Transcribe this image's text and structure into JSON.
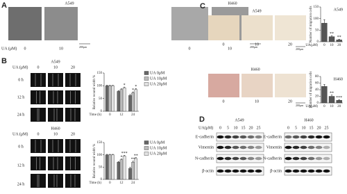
{
  "panel_a": {
    "label": "A",
    "x_label": "UA (μM)",
    "a549": {
      "title": "A549",
      "doses": [
        "0",
        "10"
      ],
      "scale": "200μm"
    },
    "h460": {
      "title": "H460",
      "doses": [
        "0",
        "10"
      ],
      "scale": "200μm"
    }
  },
  "panel_b": {
    "label": "B",
    "a549": {
      "title": "A549",
      "header": "UA (μM)",
      "doses": [
        "0",
        "10",
        "20"
      ],
      "times": [
        "0 h",
        "12 h",
        "24 h"
      ]
    },
    "h460": {
      "title": "H460",
      "header": "UA (μM)",
      "doses": [
        "0",
        "10",
        "20"
      ],
      "times": [
        "0 h",
        "12 h",
        "24 h"
      ]
    }
  },
  "panel_c": {
    "label": "C",
    "a549": {
      "title": "A549",
      "doses": [
        "0",
        "10",
        "20"
      ],
      "scale": "200μm"
    },
    "h460": {
      "title": "H460",
      "doses": [
        "0",
        "10",
        "20"
      ],
      "scale": "200μm"
    }
  },
  "panel_d": {
    "label": "D",
    "x_label": "UA(μM)",
    "a549": {
      "title": "A549",
      "doses": [
        "0",
        "5",
        "10",
        "15",
        "20",
        "25"
      ],
      "proteins": [
        "E-cadherin",
        "Vimentin",
        "N-cadherin",
        "β-actin"
      ]
    },
    "h460": {
      "title": "H460",
      "doses": [
        "0",
        "5",
        "10",
        "15",
        "20",
        "25"
      ],
      "proteins": [
        "E-cadherin",
        "Vimentin",
        "N-cadherin",
        "β-actin"
      ]
    }
  },
  "chart_data": [
    {
      "type": "bar",
      "title": "A549",
      "x_label": "UA(μM)",
      "y_label": "Number of migration cells",
      "categories": [
        "0",
        "10",
        "20"
      ],
      "values": [
        80,
        22,
        8
      ],
      "errors": [
        15,
        4,
        3
      ],
      "significance": [
        null,
        "**",
        "**"
      ],
      "color": "#555555",
      "ylim": [
        0,
        150
      ],
      "yticks": [
        0,
        50,
        100,
        150
      ]
    },
    {
      "type": "bar",
      "title": "H460",
      "x_label": "UA(μM)",
      "y_label": "Number of migration cells",
      "categories": [
        "0",
        "10",
        "20"
      ],
      "values": [
        50,
        20,
        8
      ],
      "errors": [
        6,
        4,
        2
      ],
      "significance": [
        null,
        "**",
        "***"
      ],
      "color": "#555555",
      "ylim": [
        0,
        80
      ],
      "yticks": [
        0,
        20,
        40,
        60,
        80
      ]
    },
    {
      "type": "bar",
      "x_label": "Time (h)",
      "y_label": "Relative wound width %",
      "categories": [
        "0",
        "12",
        "24"
      ],
      "legend": "right",
      "series": [
        {
          "name": "UA 0μM",
          "color": "#666666",
          "values": [
            100,
            78,
            62
          ],
          "errors": [
            2,
            3,
            4
          ],
          "significance": [
            null,
            null,
            null
          ]
        },
        {
          "name": "UA 10μM",
          "color": "#bbbbbb",
          "values": [
            100,
            85,
            72
          ],
          "errors": [
            2,
            3,
            4
          ],
          "significance": [
            null,
            null,
            "*"
          ]
        },
        {
          "name": "UA 20μM",
          "color": "#e2e2e2",
          "values": [
            100,
            92,
            85
          ],
          "errors": [
            2,
            3,
            4
          ],
          "significance": [
            null,
            "*",
            "*"
          ]
        }
      ],
      "ylim": [
        0,
        150
      ],
      "yticks": [
        0,
        50,
        100,
        150
      ]
    },
    {
      "type": "bar",
      "x_label": "Time (h)",
      "y_label": "Relative wound width %",
      "categories": [
        "0",
        "12",
        "24"
      ],
      "legend": "right",
      "series": [
        {
          "name": "UA 0μM",
          "color": "#666666",
          "values": [
            100,
            70,
            45
          ],
          "errors": [
            2,
            3,
            4
          ],
          "significance": [
            null,
            null,
            null
          ]
        },
        {
          "name": "UA 10μM",
          "color": "#bbbbbb",
          "values": [
            100,
            80,
            70
          ],
          "errors": [
            2,
            3,
            4
          ],
          "significance": [
            null,
            "*",
            "**"
          ]
        },
        {
          "name": "UA 20μM",
          "color": "#e2e2e2",
          "values": [
            100,
            95,
            85
          ],
          "errors": [
            2,
            3,
            4
          ],
          "significance": [
            null,
            "***",
            "**"
          ]
        }
      ],
      "ylim": [
        0,
        150
      ],
      "yticks": [
        0,
        50,
        100,
        150
      ]
    }
  ]
}
